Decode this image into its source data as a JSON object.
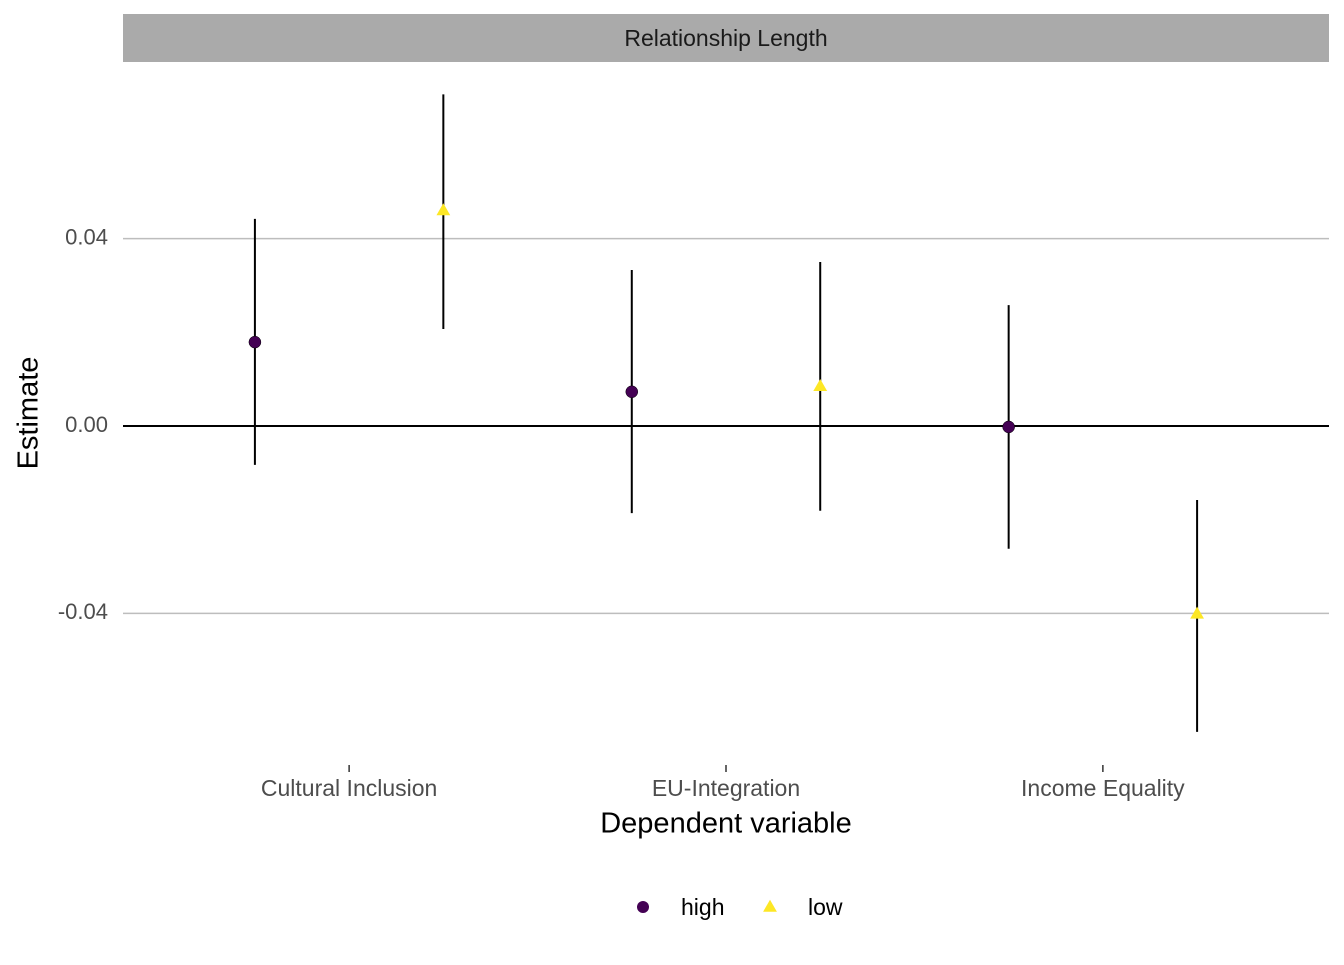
{
  "chart_data": {
    "type": "pointrange",
    "facet_title": "Relationship Length",
    "x_label": "Dependent variable",
    "y_label": "Estimate",
    "categories": [
      "Cultural Inclusion",
      "EU-Integration",
      "Income Equality"
    ],
    "series": [
      {
        "name": "high",
        "color": "#440154",
        "shape": "circle",
        "values": [
          0.0179,
          0.0073,
          -0.0002
        ],
        "lower": [
          -0.0083,
          -0.0186,
          -0.0262
        ],
        "upper": [
          0.0442,
          0.0333,
          0.0258
        ]
      },
      {
        "name": "low",
        "color": "#FDE725",
        "shape": "triangle",
        "values": [
          0.046,
          0.0085,
          -0.0401
        ],
        "lower": [
          0.0207,
          -0.0181,
          -0.0653
        ],
        "upper": [
          0.0708,
          0.035,
          -0.0158
        ]
      }
    ],
    "ylim": [
      -0.0713,
      0.0777
    ],
    "yticks": [
      -0.04,
      {
        "value": 0,
        "label": "0.00"
      },
      0.04
    ],
    "reference_line": 0,
    "grid": true,
    "legend_position": "bottom"
  }
}
